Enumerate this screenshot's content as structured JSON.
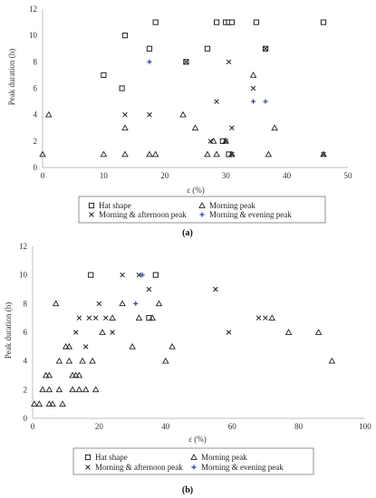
{
  "chart_data": [
    {
      "type": "scatter",
      "caption": "(a)",
      "xlabel": "ε (%)",
      "ylabel": "Peak duration (h)",
      "xlim": [
        0,
        50
      ],
      "ylim": [
        0,
        12
      ],
      "xticks": [
        0,
        10,
        20,
        30,
        40,
        50
      ],
      "yticks": [
        0,
        2,
        4,
        6,
        8,
        10,
        12
      ],
      "grid": false,
      "legend_position": "bottom",
      "series": [
        {
          "name": "Hat shape",
          "marker": "square",
          "points": [
            [
              18.5,
              11
            ],
            [
              28.5,
              11
            ],
            [
              30,
              11
            ],
            [
              30.5,
              11
            ],
            [
              31,
              11
            ],
            [
              35,
              11
            ],
            [
              46,
              11
            ],
            [
              13.5,
              10
            ],
            [
              10,
              7
            ],
            [
              13,
              6
            ],
            [
              17.5,
              9
            ],
            [
              27,
              9
            ],
            [
              36.5,
              9
            ],
            [
              23.5,
              8
            ],
            [
              29.5,
              2
            ],
            [
              30.5,
              1
            ]
          ]
        },
        {
          "name": "Morning peak",
          "marker": "triangle",
          "points": [
            [
              0,
              1
            ],
            [
              1,
              4
            ],
            [
              10,
              1
            ],
            [
              13.5,
              1
            ],
            [
              13.5,
              3
            ],
            [
              17.5,
              1
            ],
            [
              18.5,
              1
            ],
            [
              23,
              4
            ],
            [
              25,
              3
            ],
            [
              27,
              1
            ],
            [
              28,
              2
            ],
            [
              28.5,
              1
            ],
            [
              30,
              2
            ],
            [
              31,
              1
            ],
            [
              34.5,
              7
            ],
            [
              37,
              1
            ],
            [
              38,
              3
            ],
            [
              46,
              1
            ]
          ]
        },
        {
          "name": "Morning & afternoon peak",
          "marker": "cross",
          "points": [
            [
              13.5,
              4
            ],
            [
              17.5,
              4
            ],
            [
              23.5,
              8
            ],
            [
              27.5,
              2
            ],
            [
              28.5,
              5
            ],
            [
              30,
              2
            ],
            [
              30.5,
              8
            ],
            [
              31,
              3
            ],
            [
              31,
              1
            ],
            [
              34.5,
              6
            ],
            [
              36.5,
              9
            ],
            [
              46,
              1
            ]
          ]
        },
        {
          "name": "Morning & evening peak",
          "marker": "plus",
          "points": [
            [
              17.5,
              8
            ],
            [
              34.5,
              5
            ],
            [
              36.5,
              5
            ]
          ]
        }
      ]
    },
    {
      "type": "scatter",
      "caption": "(b)",
      "xlabel": "ε (%)",
      "ylabel": "Peak duration (h)",
      "xlim": [
        0,
        100
      ],
      "ylim": [
        0,
        12
      ],
      "xticks": [
        0,
        20,
        40,
        60,
        80,
        100
      ],
      "yticks": [
        0,
        2,
        4,
        6,
        8,
        10,
        12
      ],
      "grid": false,
      "legend_position": "bottom",
      "series": [
        {
          "name": "Hat shape",
          "marker": "square",
          "points": [
            [
              17.5,
              10
            ],
            [
              37,
              10
            ],
            [
              35,
              7
            ]
          ]
        },
        {
          "name": "Morning peak",
          "marker": "triangle",
          "points": [
            [
              0.5,
              1
            ],
            [
              2,
              1
            ],
            [
              3,
              2
            ],
            [
              4,
              3
            ],
            [
              5,
              2
            ],
            [
              5,
              3
            ],
            [
              5,
              1
            ],
            [
              6,
              1
            ],
            [
              7,
              8
            ],
            [
              8,
              4
            ],
            [
              8,
              2
            ],
            [
              9,
              1
            ],
            [
              10,
              5
            ],
            [
              11,
              4
            ],
            [
              11,
              5
            ],
            [
              12,
              2
            ],
            [
              12,
              3
            ],
            [
              13,
              3
            ],
            [
              14,
              2
            ],
            [
              14,
              3
            ],
            [
              15,
              4
            ],
            [
              16,
              2
            ],
            [
              18,
              4
            ],
            [
              19,
              2
            ],
            [
              21,
              6
            ],
            [
              24,
              7
            ],
            [
              27,
              8
            ],
            [
              30,
              5
            ],
            [
              32,
              7
            ],
            [
              36,
              7
            ],
            [
              38,
              8
            ],
            [
              40,
              4
            ],
            [
              42,
              5
            ],
            [
              72,
              7
            ],
            [
              77,
              6
            ],
            [
              86,
              6
            ],
            [
              90,
              4
            ]
          ]
        },
        {
          "name": "Morning & afternoon peak",
          "marker": "cross",
          "points": [
            [
              13,
              6
            ],
            [
              14,
              7
            ],
            [
              16,
              5
            ],
            [
              17,
              7
            ],
            [
              19,
              7
            ],
            [
              20,
              8
            ],
            [
              22,
              7
            ],
            [
              24,
              6
            ],
            [
              27,
              10
            ],
            [
              32,
              10
            ],
            [
              35,
              9
            ],
            [
              55,
              9
            ],
            [
              59,
              6
            ],
            [
              68,
              7
            ],
            [
              70,
              7
            ]
          ]
        },
        {
          "name": "Morning & evening peak",
          "marker": "plus",
          "points": [
            [
              31,
              8
            ],
            [
              33,
              10
            ]
          ]
        }
      ]
    }
  ],
  "colors": {
    "axis": "#bfbfbf",
    "marker_dark": "#222222",
    "marker_blue": "#2b3f9e"
  }
}
